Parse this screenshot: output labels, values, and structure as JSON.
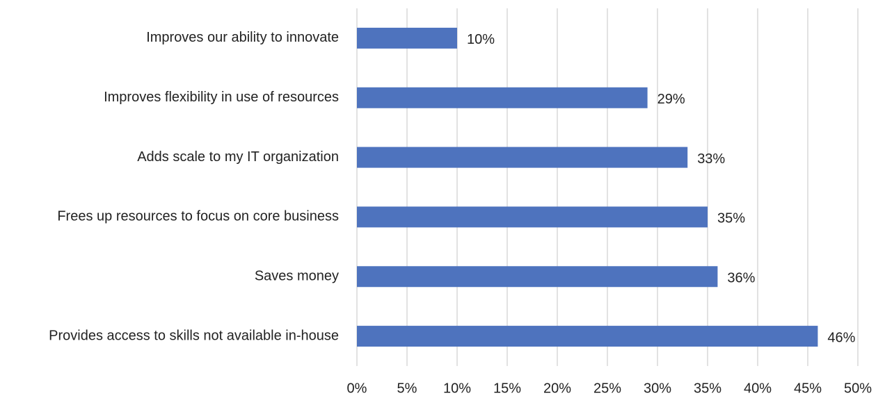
{
  "chart_data": {
    "type": "bar",
    "orientation": "horizontal",
    "categories": [
      "Improves our ability to innovate",
      "Improves flexibility in use of resources",
      "Adds scale to my IT organization",
      "Frees up resources to focus on core business",
      "Saves money",
      "Provides access to skills not available in-house"
    ],
    "values": [
      10,
      29,
      33,
      35,
      36,
      46
    ],
    "value_labels": [
      "10%",
      "29%",
      "33%",
      "35%",
      "36%",
      "46%"
    ],
    "color": "#4e73be",
    "xlim": [
      0,
      50
    ],
    "xticks": [
      {
        "value": 0,
        "label": "0%"
      },
      {
        "value": 5,
        "label": "5%"
      },
      {
        "value": 10,
        "label": "10%"
      },
      {
        "value": 15,
        "label": "15%"
      },
      {
        "value": 20,
        "label": "20%"
      },
      {
        "value": 25,
        "label": "25%"
      },
      {
        "value": 30,
        "label": "30%"
      },
      {
        "value": 35,
        "label": "35%"
      },
      {
        "value": 40,
        "label": "40%"
      },
      {
        "value": 45,
        "label": "45%"
      },
      {
        "value": 50,
        "label": "50%"
      }
    ],
    "grid": true
  }
}
